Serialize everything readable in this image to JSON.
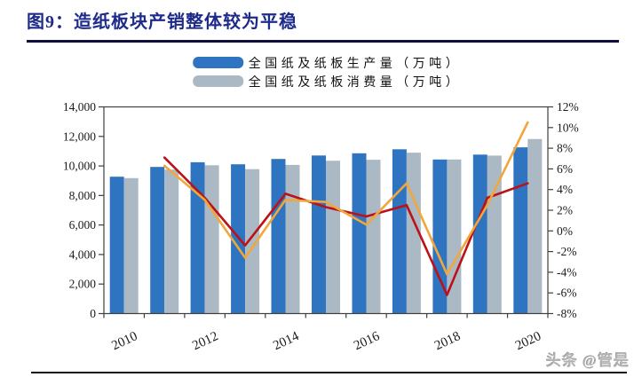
{
  "header": {
    "title": "图9：造纸板块产销整体较为平稳"
  },
  "footer": {
    "watermark": "头条 @管是"
  },
  "colors": {
    "title": "#1e2b8a",
    "rule": "#0e0e38",
    "axis": "#3f3f3f",
    "axis_text": "#1a1a1a",
    "watermark": "#b3b3b3"
  },
  "chart_data": {
    "type": "bar+line combo",
    "title": "图9：造纸板块产销整体较为平稳",
    "categories": [
      "2010",
      "2011",
      "2012",
      "2013",
      "2014",
      "2015",
      "2016",
      "2017",
      "2018",
      "2019",
      "2020"
    ],
    "x_label_step": 2,
    "x_tick_labels_shown": [
      "2010",
      "2012",
      "2014",
      "2016",
      "2018",
      "2020"
    ],
    "left_axis": {
      "min": 0,
      "max": 14000,
      "tick_labels": [
        "0",
        "2,000",
        "4,000",
        "6,000",
        "8,000",
        "10,000",
        "12,000",
        "14,000"
      ]
    },
    "right_axis": {
      "min": -8,
      "max": 12,
      "tick_labels": [
        "-8%",
        "-6%",
        "-4%",
        "-2%",
        "0%",
        "2%",
        "4%",
        "6%",
        "8%",
        "10%",
        "12%"
      ]
    },
    "grid": "off",
    "legend_position": "top-center",
    "series": [
      {
        "name": "全国纸及纸板生产量（万吨）",
        "type": "bar",
        "axis": "left",
        "color": "#2f74c0",
        "in_legend": true,
        "values": [
          9270,
          9930,
          10250,
          10110,
          10470,
          10710,
          10855,
          11130,
          10435,
          10765,
          11260
        ]
      },
      {
        "name": "全国纸及纸板消费量（万吨）",
        "type": "bar",
        "axis": "left",
        "color": "#abb9c5",
        "in_legend": true,
        "values": [
          9173,
          9752,
          10048,
          9782,
          10071,
          10352,
          10419,
          10897,
          10439,
          10704,
          11827
        ]
      },
      {
        "name": "red-growth-line",
        "type": "line",
        "axis": "right",
        "color": "#bb1117",
        "in_legend": false,
        "values": [
          null,
          7.1,
          3.2,
          -1.4,
          3.6,
          2.3,
          1.4,
          2.5,
          -6.2,
          3.2,
          4.6
        ]
      },
      {
        "name": "orange-growth-line",
        "type": "line",
        "axis": "right",
        "color": "#f0a73c",
        "in_legend": false,
        "values": [
          null,
          6.3,
          3.0,
          -2.6,
          3.0,
          2.8,
          0.6,
          4.6,
          -4.2,
          2.5,
          10.5
        ]
      }
    ]
  }
}
